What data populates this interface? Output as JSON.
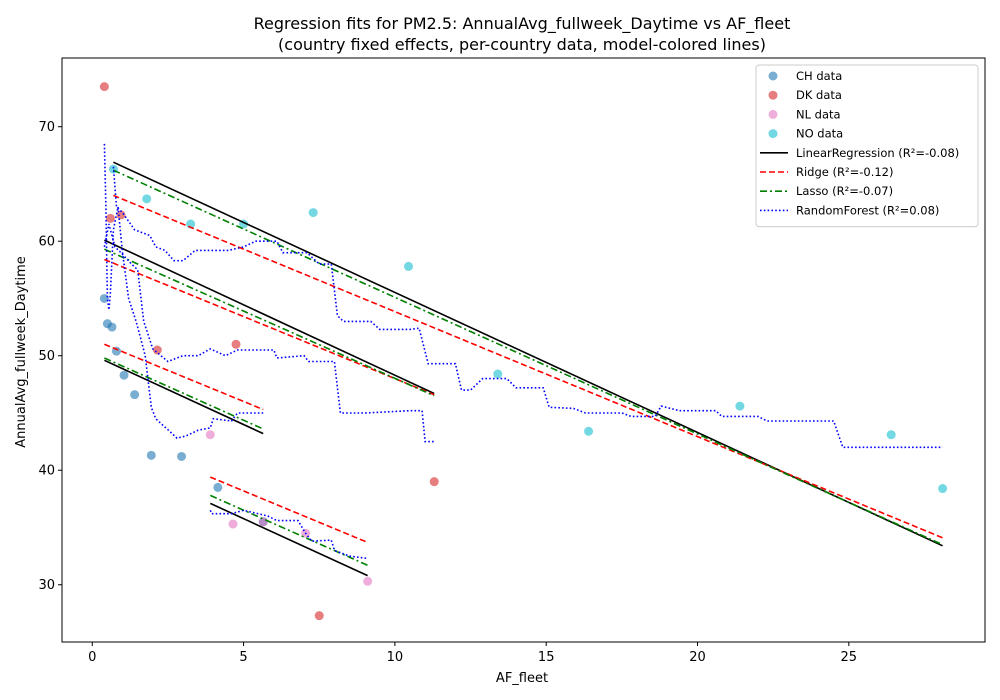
{
  "chart_data": {
    "type": "scatter",
    "title": "Regression fits for PM2.5: AnnualAvg_fullweek_Daytime vs AF_fleet",
    "subtitle": "(country fixed effects, per-country data, model-colored lines)",
    "xlabel": "AF_fleet",
    "ylabel": "AnnualAvg_fullweek_Daytime",
    "xlim": [
      -1.0,
      29.5
    ],
    "ylim": [
      25.0,
      76.0
    ],
    "xticks": [
      0,
      5,
      10,
      15,
      20,
      25
    ],
    "yticks": [
      30,
      40,
      50,
      60,
      70
    ],
    "grid": false,
    "legend_position": "top-right",
    "scatter_series": [
      {
        "name": "CH data",
        "color": "#1f77b4",
        "points": [
          [
            0.4,
            55.0
          ],
          [
            0.5,
            52.8
          ],
          [
            0.65,
            52.5
          ],
          [
            0.8,
            50.4
          ],
          [
            1.05,
            48.3
          ],
          [
            1.4,
            46.6
          ],
          [
            1.95,
            41.3
          ],
          [
            2.95,
            41.2
          ],
          [
            4.15,
            38.5
          ],
          [
            5.65,
            35.5
          ]
        ]
      },
      {
        "name": "DK data",
        "color": "#d62728",
        "points": [
          [
            0.4,
            73.5
          ],
          [
            0.6,
            62.0
          ],
          [
            0.95,
            62.3
          ],
          [
            2.15,
            50.5
          ],
          [
            4.75,
            51.0
          ],
          [
            7.5,
            27.3
          ],
          [
            11.3,
            39.0
          ]
        ]
      },
      {
        "name": "NL data",
        "color": "#e377c2",
        "points": [
          [
            3.9,
            43.1
          ],
          [
            4.65,
            35.3
          ],
          [
            5.65,
            35.5
          ],
          [
            7.05,
            34.5
          ],
          [
            9.1,
            30.3
          ]
        ]
      },
      {
        "name": "NO data",
        "color": "#17becf",
        "points": [
          [
            0.7,
            66.3
          ],
          [
            1.8,
            63.7
          ],
          [
            3.25,
            61.5
          ],
          [
            5.0,
            61.5
          ],
          [
            7.3,
            62.5
          ],
          [
            10.45,
            57.8
          ],
          [
            13.4,
            48.4
          ],
          [
            16.4,
            43.4
          ],
          [
            21.4,
            45.6
          ],
          [
            26.4,
            43.1
          ],
          [
            28.1,
            38.4
          ]
        ]
      }
    ],
    "line_series": [
      {
        "name": "LinearRegression (R²=-0.08)",
        "color": "#000000",
        "dash": "solid",
        "segments": [
          [
            [
              0.4,
              49.6
            ],
            [
              5.65,
              43.2
            ]
          ],
          [
            [
              0.4,
              60.1
            ],
            [
              11.3,
              46.7
            ]
          ],
          [
            [
              3.9,
              37.1
            ],
            [
              9.1,
              30.8
            ]
          ],
          [
            [
              0.7,
              66.9
            ],
            [
              28.1,
              33.4
            ]
          ]
        ]
      },
      {
        "name": "Ridge (R²=-0.12)",
        "color": "#ff0000",
        "dash": "dashed",
        "segments": [
          [
            [
              0.4,
              51.0
            ],
            [
              5.65,
              45.3
            ]
          ],
          [
            [
              0.4,
              58.4
            ],
            [
              11.3,
              46.6
            ]
          ],
          [
            [
              3.9,
              39.4
            ],
            [
              9.1,
              33.7
            ]
          ],
          [
            [
              0.7,
              64.0
            ],
            [
              28.1,
              34.1
            ]
          ]
        ]
      },
      {
        "name": "Lasso (R²=-0.07)",
        "color": "#008000",
        "dash": "dashdot",
        "segments": [
          [
            [
              0.4,
              49.8
            ],
            [
              5.65,
              43.6
            ]
          ],
          [
            [
              0.4,
              59.3
            ],
            [
              11.3,
              46.5
            ]
          ],
          [
            [
              3.9,
              37.8
            ],
            [
              9.1,
              31.7
            ]
          ],
          [
            [
              0.7,
              66.2
            ],
            [
              28.1,
              33.5
            ]
          ]
        ]
      },
      {
        "name": "RandomForest (R²=0.08)",
        "color": "#0000ff",
        "dash": "dotted",
        "segments": [
          [
            [
              0.4,
              68.5
            ],
            [
              0.45,
              63.0
            ],
            [
              0.5,
              55.0
            ],
            [
              0.55,
              54.0
            ],
            [
              0.6,
              55.5
            ],
            [
              0.7,
              61.0
            ],
            [
              0.85,
              63.0
            ],
            [
              1.0,
              59.0
            ],
            [
              1.2,
              55.0
            ],
            [
              1.45,
              53.0
            ],
            [
              1.6,
              51.5
            ],
            [
              1.75,
              50.0
            ],
            [
              1.95,
              45.5
            ],
            [
              2.1,
              44.5
            ],
            [
              2.3,
              44.0
            ],
            [
              2.6,
              43.3
            ],
            [
              2.8,
              42.8
            ],
            [
              3.1,
              43.0
            ],
            [
              3.5,
              43.5
            ],
            [
              3.9,
              43.7
            ],
            [
              4.0,
              44.5
            ],
            [
              4.6,
              44.3
            ],
            [
              4.8,
              45.0
            ],
            [
              5.65,
              45.0
            ]
          ],
          [
            [
              0.4,
              59.5
            ],
            [
              0.55,
              61.5
            ],
            [
              0.75,
              59.5
            ],
            [
              0.95,
              59.0
            ],
            [
              1.3,
              58.0
            ],
            [
              1.5,
              57.5
            ],
            [
              1.7,
              53.0
            ],
            [
              2.0,
              50.6
            ],
            [
              2.5,
              49.5
            ],
            [
              3.0,
              50.0
            ],
            [
              3.5,
              50.0
            ],
            [
              3.9,
              50.6
            ],
            [
              4.4,
              50.0
            ],
            [
              4.8,
              50.5
            ],
            [
              6.0,
              50.5
            ],
            [
              6.1,
              49.8
            ],
            [
              7.0,
              50.0
            ],
            [
              7.15,
              49.5
            ],
            [
              8.0,
              49.5
            ],
            [
              8.2,
              45.0
            ],
            [
              9.0,
              45.0
            ],
            [
              10.5,
              45.2
            ],
            [
              10.9,
              45.2
            ],
            [
              11.0,
              42.5
            ],
            [
              11.3,
              42.5
            ]
          ],
          [
            [
              3.9,
              36.5
            ],
            [
              3.95,
              36.2
            ],
            [
              4.6,
              36.2
            ],
            [
              5.0,
              36.5
            ],
            [
              5.8,
              36.0
            ],
            [
              6.1,
              35.6
            ],
            [
              6.8,
              35.6
            ],
            [
              7.05,
              34.5
            ],
            [
              7.25,
              33.8
            ],
            [
              7.9,
              33.9
            ],
            [
              8.0,
              33.0
            ],
            [
              8.2,
              32.8
            ],
            [
              8.5,
              32.5
            ],
            [
              9.1,
              32.3
            ]
          ],
          [
            [
              0.7,
              66.5
            ],
            [
              0.8,
              63.0
            ],
            [
              1.0,
              62.5
            ],
            [
              1.4,
              61.0
            ],
            [
              1.9,
              60.5
            ],
            [
              2.1,
              59.5
            ],
            [
              2.4,
              59.2
            ],
            [
              2.7,
              58.3
            ],
            [
              3.0,
              58.3
            ],
            [
              3.4,
              59.2
            ],
            [
              4.5,
              59.2
            ],
            [
              5.0,
              59.5
            ],
            [
              5.4,
              60.0
            ],
            [
              6.1,
              60.0
            ],
            [
              6.3,
              59.0
            ],
            [
              7.1,
              59.0
            ],
            [
              7.5,
              58.0
            ],
            [
              7.9,
              58.0
            ],
            [
              8.1,
              53.5
            ],
            [
              8.3,
              53.0
            ],
            [
              9.2,
              53.0
            ],
            [
              9.5,
              52.3
            ],
            [
              10.5,
              52.3
            ],
            [
              10.8,
              52.4
            ],
            [
              11.1,
              49.3
            ],
            [
              11.3,
              49.3
            ],
            [
              12.0,
              49.3
            ],
            [
              12.2,
              47.0
            ],
            [
              12.5,
              47.0
            ],
            [
              12.9,
              48.0
            ],
            [
              13.7,
              48.0
            ],
            [
              14.0,
              47.2
            ],
            [
              14.9,
              47.2
            ],
            [
              15.1,
              45.5
            ],
            [
              15.9,
              45.4
            ],
            [
              16.3,
              45.0
            ],
            [
              17.5,
              45.0
            ],
            [
              17.8,
              44.7
            ],
            [
              18.6,
              44.7
            ],
            [
              18.8,
              45.6
            ],
            [
              19.4,
              45.2
            ],
            [
              20.6,
              45.2
            ],
            [
              20.8,
              44.7
            ],
            [
              22.0,
              44.7
            ],
            [
              22.3,
              44.3
            ],
            [
              24.5,
              44.3
            ],
            [
              24.8,
              42.0
            ],
            [
              28.1,
              42.0
            ]
          ]
        ]
      }
    ],
    "legend": [
      "CH data",
      "DK data",
      "NL data",
      "NO data",
      "LinearRegression (R²=-0.08)",
      "Ridge (R²=-0.12)",
      "Lasso (R²=-0.07)",
      "RandomForest (R²=0.08)"
    ]
  }
}
